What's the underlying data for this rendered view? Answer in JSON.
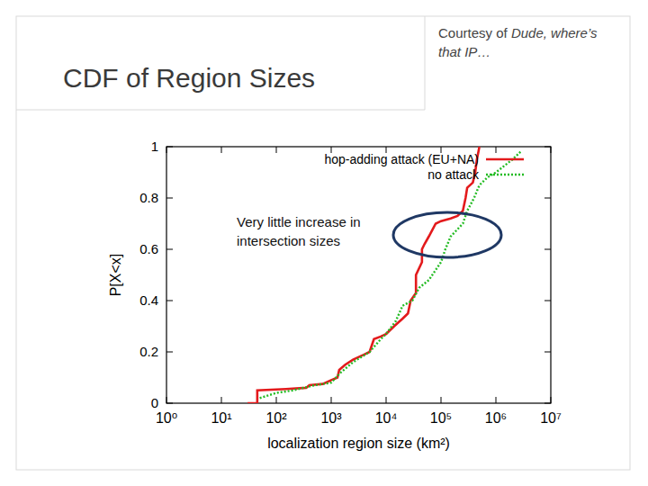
{
  "slide": {
    "title": "CDF of Region Sizes",
    "credit": {
      "prefix": "Courtesy of",
      "italic": "Dude, where’s that IP…"
    }
  },
  "chart_data": {
    "type": "line",
    "x_label": "localization region size (km²)",
    "y_label": "P[X<x]",
    "log": "x",
    "grid": false,
    "legend": "upper right",
    "xlim": [
      1,
      10000000
    ],
    "ylim": [
      0,
      1
    ],
    "xticks": [
      {
        "value": 1,
        "label": "10⁰"
      },
      {
        "value": 10,
        "label": "10¹"
      },
      {
        "value": 100,
        "label": "10²"
      },
      {
        "value": 1000,
        "label": "10³"
      },
      {
        "value": 10000,
        "label": "10⁴"
      },
      {
        "value": 100000,
        "label": "10⁵"
      },
      {
        "value": 1000000,
        "label": "10⁶"
      },
      {
        "value": 10000000,
        "label": "10⁷"
      }
    ],
    "yticks": [
      0,
      0.2,
      0.4,
      0.6,
      0.8,
      1
    ],
    "annotations": [
      {
        "text": "Very little increase in intersection sizes"
      }
    ],
    "series": [
      {
        "name": "hop-adding attack (EU+NA)",
        "color": "#e31a1c",
        "line_style": "solid",
        "marker": "none",
        "x": [
          30,
          45,
          45,
          150,
          350,
          400,
          700,
          1000,
          1300,
          1400,
          1800,
          2500,
          4000,
          5000,
          6000,
          8000,
          10000,
          14000,
          20000,
          25000,
          28000,
          35000,
          35000,
          45000,
          45000,
          50000,
          60000,
          80000,
          100000,
          150000,
          200000,
          250000,
          280000,
          300000,
          380000,
          420000,
          450000,
          480000,
          500000
        ],
        "values": [
          0,
          0,
          0.05,
          0.055,
          0.06,
          0.07,
          0.075,
          0.09,
          0.1,
          0.13,
          0.15,
          0.17,
          0.19,
          0.2,
          0.25,
          0.26,
          0.27,
          0.3,
          0.33,
          0.35,
          0.4,
          0.43,
          0.5,
          0.55,
          0.6,
          0.62,
          0.65,
          0.7,
          0.71,
          0.72,
          0.73,
          0.75,
          0.8,
          0.84,
          0.86,
          0.9,
          0.95,
          0.98,
          1
        ]
      },
      {
        "name": "no attack",
        "color": "#22bb22",
        "line_style": "dotted",
        "marker": "none",
        "x": [
          50,
          100,
          200,
          500,
          1000,
          1500,
          2500,
          5000,
          8000,
          10000,
          15000,
          20000,
          30000,
          40000,
          60000,
          100000,
          120000,
          150000,
          250000,
          300000,
          400000,
          500000,
          700000,
          1000000,
          2000000,
          2800000
        ],
        "values": [
          0.02,
          0.04,
          0.05,
          0.07,
          0.08,
          0.12,
          0.16,
          0.2,
          0.25,
          0.27,
          0.32,
          0.38,
          0.4,
          0.45,
          0.48,
          0.55,
          0.6,
          0.65,
          0.7,
          0.75,
          0.8,
          0.85,
          0.88,
          0.9,
          0.95,
          0.98
        ]
      }
    ]
  }
}
